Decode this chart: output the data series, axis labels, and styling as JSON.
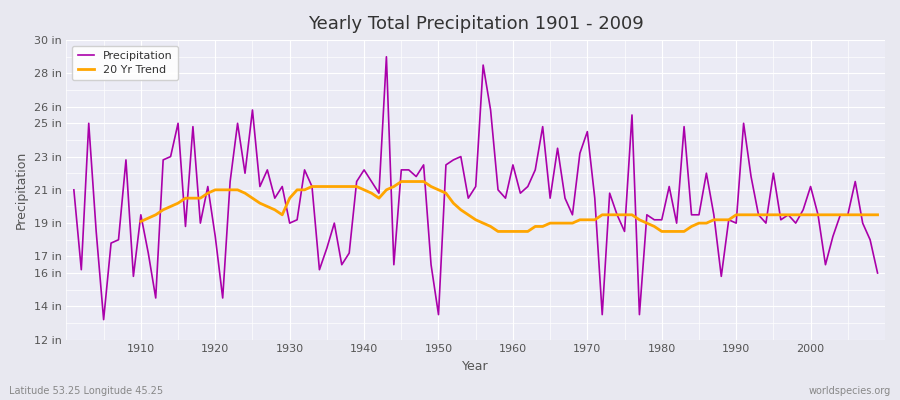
{
  "title": "Yearly Total Precipitation 1901 - 2009",
  "xlabel": "Year",
  "ylabel": "Precipitation",
  "footnote_left": "Latitude 53.25 Longitude 45.25",
  "footnote_right": "worldspecies.org",
  "legend_entries": [
    "Precipitation",
    "20 Yr Trend"
  ],
  "precip_color": "#aa00aa",
  "trend_color": "#ffa500",
  "background_color": "#e8e8f0",
  "plot_bg_color": "#ebebf5",
  "grid_color": "#ffffff",
  "ylim_min": 12,
  "ylim_max": 30,
  "yticks": [
    12,
    14,
    16,
    17,
    19,
    21,
    23,
    25,
    26,
    28,
    30
  ],
  "ytick_labels": [
    "12 in",
    "14 in",
    "16 in",
    "17 in",
    "19 in",
    "21 in",
    "23 in",
    "25 in",
    "26 in",
    "28 in",
    "30 in"
  ],
  "years": [
    1901,
    1902,
    1903,
    1904,
    1905,
    1906,
    1907,
    1908,
    1909,
    1910,
    1911,
    1912,
    1913,
    1914,
    1915,
    1916,
    1917,
    1918,
    1919,
    1920,
    1921,
    1922,
    1923,
    1924,
    1925,
    1926,
    1927,
    1928,
    1929,
    1930,
    1931,
    1932,
    1933,
    1934,
    1935,
    1936,
    1937,
    1938,
    1939,
    1940,
    1941,
    1942,
    1943,
    1944,
    1945,
    1946,
    1947,
    1948,
    1949,
    1950,
    1951,
    1952,
    1953,
    1954,
    1955,
    1956,
    1957,
    1958,
    1959,
    1960,
    1961,
    1962,
    1963,
    1964,
    1965,
    1966,
    1967,
    1968,
    1969,
    1970,
    1971,
    1972,
    1973,
    1974,
    1975,
    1976,
    1977,
    1978,
    1979,
    1980,
    1981,
    1982,
    1983,
    1984,
    1985,
    1986,
    1987,
    1988,
    1989,
    1990,
    1991,
    1992,
    1993,
    1994,
    1995,
    1996,
    1997,
    1998,
    1999,
    2000,
    2001,
    2002,
    2003,
    2004,
    2005,
    2006,
    2007,
    2008,
    2009
  ],
  "precip": [
    21.0,
    16.2,
    25.0,
    18.5,
    13.2,
    17.8,
    18.0,
    22.8,
    15.8,
    19.5,
    17.2,
    14.5,
    22.8,
    23.0,
    25.0,
    18.8,
    24.8,
    19.0,
    21.2,
    18.2,
    14.5,
    21.5,
    25.0,
    22.0,
    25.8,
    21.2,
    22.2,
    20.5,
    21.2,
    19.0,
    19.2,
    22.2,
    21.2,
    16.2,
    17.5,
    19.0,
    16.5,
    17.2,
    21.5,
    22.2,
    21.5,
    20.8,
    29.0,
    16.5,
    22.2,
    22.2,
    21.8,
    22.5,
    16.5,
    13.5,
    22.5,
    22.8,
    23.0,
    20.5,
    21.2,
    28.5,
    25.8,
    21.0,
    20.5,
    22.5,
    20.8,
    21.2,
    22.2,
    24.8,
    20.5,
    23.5,
    20.5,
    19.5,
    23.2,
    24.5,
    20.5,
    13.5,
    20.8,
    19.5,
    18.5,
    25.5,
    13.5,
    19.5,
    19.2,
    19.2,
    21.2,
    19.0,
    24.8,
    19.5,
    19.5,
    22.0,
    19.5,
    15.8,
    19.2,
    19.0,
    25.0,
    21.8,
    19.5,
    19.0,
    22.0,
    19.2,
    19.5,
    19.0,
    19.8,
    21.2,
    19.5,
    16.5,
    18.2,
    19.5,
    19.5,
    21.5,
    19.0,
    18.0,
    16.0
  ],
  "trend_years": [
    1910,
    1911,
    1912,
    1913,
    1914,
    1915,
    1916,
    1917,
    1918,
    1919,
    1920,
    1921,
    1922,
    1923,
    1924,
    1925,
    1926,
    1927,
    1928,
    1929,
    1930,
    1931,
    1932,
    1933,
    1934,
    1935,
    1936,
    1937,
    1938,
    1939,
    1940,
    1941,
    1942,
    1943,
    1944,
    1945,
    1946,
    1947,
    1948,
    1949,
    1950,
    1951,
    1952,
    1953,
    1954,
    1955,
    1956,
    1957,
    1958,
    1959,
    1960,
    1961,
    1962,
    1963,
    1964,
    1965,
    1966,
    1967,
    1968,
    1969,
    1970,
    1971,
    1972,
    1973,
    1974,
    1975,
    1976,
    1977,
    1978,
    1979,
    1980,
    1981,
    1982,
    1983,
    1984,
    1985,
    1986,
    1987,
    1988,
    1989,
    1990,
    1991,
    1992,
    1993,
    1994,
    1995,
    1996,
    1997,
    1998,
    1999,
    2000,
    2001,
    2002,
    2003,
    2004,
    2005,
    2006,
    2007,
    2008,
    2009
  ],
  "trend": [
    19.1,
    19.3,
    19.5,
    19.8,
    20.0,
    20.2,
    20.5,
    20.5,
    20.5,
    20.8,
    21.0,
    21.0,
    21.0,
    21.0,
    20.8,
    20.5,
    20.2,
    20.0,
    19.8,
    19.5,
    20.5,
    21.0,
    21.0,
    21.2,
    21.2,
    21.2,
    21.2,
    21.2,
    21.2,
    21.2,
    21.0,
    20.8,
    20.5,
    21.0,
    21.2,
    21.5,
    21.5,
    21.5,
    21.5,
    21.2,
    21.0,
    20.8,
    20.2,
    19.8,
    19.5,
    19.2,
    19.0,
    18.8,
    18.5,
    18.5,
    18.5,
    18.5,
    18.5,
    18.8,
    18.8,
    19.0,
    19.0,
    19.0,
    19.0,
    19.2,
    19.2,
    19.2,
    19.5,
    19.5,
    19.5,
    19.5,
    19.5,
    19.2,
    19.0,
    18.8,
    18.5,
    18.5,
    18.5,
    18.5,
    18.8,
    19.0,
    19.0,
    19.2,
    19.2,
    19.2,
    19.5,
    19.5,
    19.5,
    19.5,
    19.5,
    19.5,
    19.5,
    19.5,
    19.5,
    19.5,
    19.5,
    19.5,
    19.5,
    19.5,
    19.5,
    19.5,
    19.5,
    19.5,
    19.5,
    19.5
  ]
}
